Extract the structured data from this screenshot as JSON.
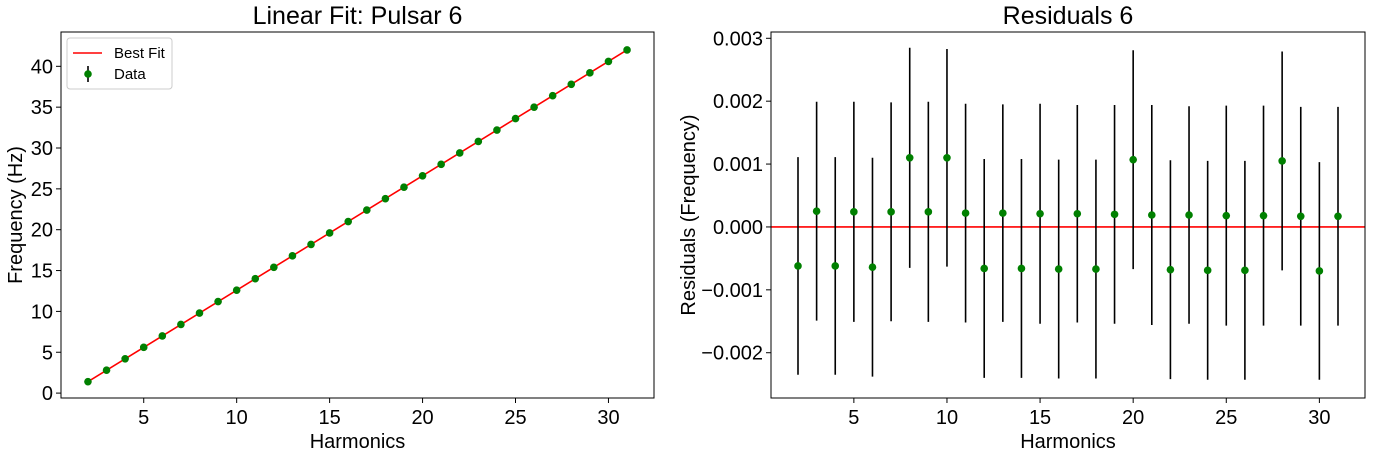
{
  "colors": {
    "fit_line": "#ff0000",
    "points": "#008000",
    "errorbar": "#000000",
    "zero_line": "#ff0000",
    "axes": "#000000",
    "background": "#ffffff"
  },
  "chart_data": [
    {
      "type": "scatter",
      "title": "Linear Fit: Pulsar 6",
      "xlabel": "Harmonics",
      "ylabel": "Frequency (Hz)",
      "xlim": [
        0.55,
        32.45
      ],
      "ylim": [
        -0.6,
        44.2
      ],
      "xticks": [
        5,
        10,
        15,
        20,
        25,
        30
      ],
      "yticks": [
        0,
        5,
        10,
        15,
        20,
        25,
        30,
        35,
        40
      ],
      "legend": {
        "position": "top-left",
        "entries": [
          "Best Fit",
          "Data"
        ]
      },
      "grid": false,
      "series": [
        {
          "name": "Best Fit",
          "kind": "line",
          "x": [
            2,
            31
          ],
          "y": [
            1.4,
            42.0
          ]
        },
        {
          "name": "Data",
          "kind": "errorbar",
          "x": [
            2,
            3,
            4,
            5,
            6,
            7,
            8,
            9,
            10,
            11,
            12,
            13,
            14,
            15,
            16,
            17,
            18,
            19,
            20,
            21,
            22,
            23,
            24,
            25,
            26,
            27,
            28,
            29,
            30,
            31
          ],
          "y": [
            1.4,
            2.8,
            4.2,
            5.6,
            7.0,
            8.4,
            9.8,
            11.2,
            12.6,
            14.0,
            15.4,
            16.8,
            18.2,
            19.6,
            21.0,
            22.4,
            23.8,
            25.2,
            26.6,
            28.0,
            29.4,
            30.8,
            32.2,
            33.6,
            35.0,
            36.4,
            37.8,
            39.2,
            40.6,
            42.0
          ]
        }
      ]
    },
    {
      "type": "scatter",
      "title": "Residuals 6",
      "xlabel": "Harmonics",
      "ylabel": "Residuals (Frequency)",
      "xlim": [
        0.55,
        32.45
      ],
      "ylim": [
        -0.00272,
        0.0031
      ],
      "xticks": [
        5,
        10,
        15,
        20,
        25,
        30
      ],
      "yticks": [
        -0.002,
        -0.001,
        0.0,
        0.001,
        0.002,
        0.003
      ],
      "ytick_labels": [
        "−0.002",
        "−0.001",
        "0.000",
        "0.001",
        "0.002",
        "0.003"
      ],
      "hline": 0,
      "grid": false,
      "series": [
        {
          "kind": "errorbar",
          "x": [
            2,
            3,
            4,
            5,
            6,
            7,
            8,
            9,
            10,
            11,
            12,
            13,
            14,
            15,
            16,
            17,
            18,
            19,
            20,
            21,
            22,
            23,
            24,
            25,
            26,
            27,
            28,
            29,
            30,
            31
          ],
          "y": [
            -0.00062,
            0.00025,
            -0.00062,
            0.00024,
            -0.00064,
            0.00024,
            0.0011,
            0.00024,
            0.0011,
            0.00022,
            -0.00066,
            0.00022,
            -0.00066,
            0.00021,
            -0.00067,
            0.00021,
            -0.00067,
            0.0002,
            0.00107,
            0.00019,
            -0.00068,
            0.00019,
            -0.00069,
            0.00018,
            -0.00069,
            0.00018,
            0.00105,
            0.00017,
            -0.0007,
            0.00017
          ],
          "yerr": [
            0.00173,
            0.00174,
            0.00173,
            0.00175,
            0.00174,
            0.00174,
            0.00175,
            0.00175,
            0.00173,
            0.00174,
            0.00174,
            0.00173,
            0.00174,
            0.00175,
            0.00174,
            0.00173,
            0.00174,
            0.00174,
            0.00174,
            0.00175,
            0.00174,
            0.00173,
            0.00174,
            0.00175,
            0.00174,
            0.00175,
            0.00174,
            0.00174,
            0.00173,
            0.00174
          ]
        }
      ]
    }
  ]
}
